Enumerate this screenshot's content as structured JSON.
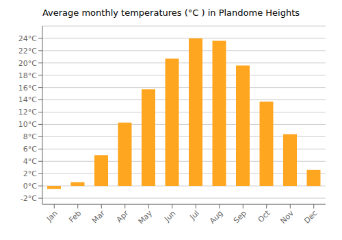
{
  "chart_data": {
    "type": "bar",
    "title": "Average monthly temperatures (°C ) in Plandome Heights",
    "categories": [
      "Jan",
      "Feb",
      "Mar",
      "Apr",
      "May",
      "Jun",
      "Jul",
      "Aug",
      "Sep",
      "Oct",
      "Nov",
      "Dec"
    ],
    "values": [
      -0.5,
      0.6,
      5.0,
      10.3,
      15.7,
      20.7,
      24.0,
      23.6,
      19.6,
      13.7,
      8.4,
      2.6
    ],
    "color": "#FFA620",
    "ylim": [
      -3,
      26
    ],
    "yticks": [
      {
        "value": -2,
        "label": "-2°C"
      },
      {
        "value": 0,
        "label": "0°C"
      },
      {
        "value": 2,
        "label": "2°C"
      },
      {
        "value": 4,
        "label": "4°C"
      },
      {
        "value": 6,
        "label": "6°C"
      },
      {
        "value": 8,
        "label": "8°C"
      },
      {
        "value": 10,
        "label": "10°C"
      },
      {
        "value": 12,
        "label": "12°C"
      },
      {
        "value": 14,
        "label": "14°C"
      },
      {
        "value": 16,
        "label": "16°C"
      },
      {
        "value": 18,
        "label": "18°C"
      },
      {
        "value": 20,
        "label": "20°C"
      },
      {
        "value": 22,
        "label": "22°C"
      },
      {
        "value": 24,
        "label": "24°C"
      }
    ],
    "grid": true
  }
}
